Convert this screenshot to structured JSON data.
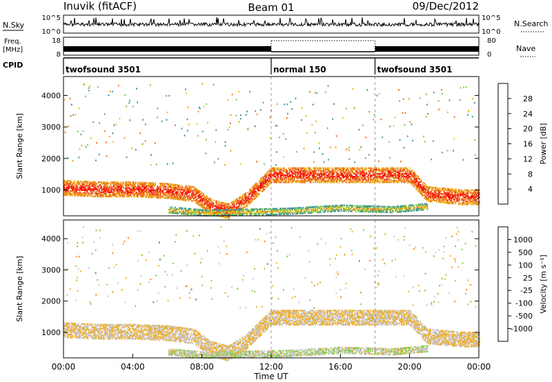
{
  "header": {
    "station": "Inuvik (fitACF)",
    "beam": "Beam 01",
    "date": "09/Dec/2012"
  },
  "status": {
    "nsky_label": "N.Sky",
    "nsky_ticks": [
      "10^5",
      "10^0"
    ],
    "nsearch_label": "N.Search",
    "nsearch_ticks": [
      "10^5",
      "10^0"
    ],
    "freq_label_1": "Freq.",
    "freq_label_2": "[MHz]",
    "freq_ticks": [
      "18",
      "8"
    ],
    "nave_label": "Nave",
    "nave_ticks": [
      "80",
      "0"
    ],
    "cpid_label": "CPID",
    "cpid_segments": [
      {
        "label": "twofsound 3501",
        "start_hour": 0,
        "end_hour": 12
      },
      {
        "label": "normal 150",
        "start_hour": 12,
        "end_hour": 18
      },
      {
        "label": "twofsound 3501",
        "start_hour": 18,
        "end_hour": 24
      }
    ]
  },
  "chart_data": [
    {
      "type": "heatmap",
      "title": "",
      "xlabel": "Time UT",
      "ylabel": "Slant Range [km]",
      "xlim": [
        0,
        24
      ],
      "ylim": [
        180,
        4600
      ],
      "x_ticks": [
        "00:00",
        "04:00",
        "08:00",
        "12:00",
        "16:00",
        "20:00",
        "00:00"
      ],
      "y_ticks": [
        1000,
        2000,
        3000,
        4000
      ],
      "colorbar": {
        "label": "Power [dB]",
        "ticks": [
          "28",
          "24",
          "20",
          "16",
          "12",
          "8",
          "4"
        ],
        "range": [
          0,
          30
        ],
        "colors": [
          "#1a1aff",
          "#2b5fb4",
          "#3d8fb0",
          "#4fa07a",
          "#7cc84a",
          "#e8c020",
          "#f0a020",
          "#f07020",
          "#f04020",
          "#ff0000"
        ]
      },
      "echo_regions": [
        {
          "label": "main band",
          "hours": [
            [
              0,
              1100
            ],
            [
              2,
              1050
            ],
            [
              4,
              1050
            ],
            [
              6,
              1000
            ],
            [
              7.5,
              900
            ],
            [
              8.5,
              500
            ],
            [
              9.5,
              350
            ],
            [
              10.5,
              700
            ],
            [
              12,
              1500
            ],
            [
              14,
              1500
            ],
            [
              16,
              1500
            ],
            [
              18,
              1500
            ],
            [
              20,
              1500
            ],
            [
              21,
              900
            ],
            [
              23,
              800
            ],
            [
              24,
              800
            ]
          ],
          "half_width_km": 230,
          "power_db": 27
        },
        {
          "label": "near range band",
          "hours": [
            [
              6,
              400
            ],
            [
              8,
              300
            ],
            [
              9,
              300
            ],
            [
              13,
              350
            ],
            [
              16,
              450
            ],
            [
              19,
              400
            ],
            [
              21,
              500
            ]
          ],
          "half_width_km": 90,
          "power_db": 18
        }
      ]
    },
    {
      "type": "heatmap",
      "title": "",
      "xlabel": "Time UT",
      "ylabel": "Slant Range [km]",
      "xlim": [
        0,
        24
      ],
      "ylim": [
        180,
        4600
      ],
      "x_ticks": [
        "00:00",
        "04:00",
        "08:00",
        "12:00",
        "16:00",
        "20:00",
        "00:00"
      ],
      "y_ticks": [
        1000,
        2000,
        3000,
        4000
      ],
      "colorbar": {
        "label": "Velocity [m s⁻¹]",
        "ticks": [
          "1000",
          "500",
          "100",
          "25",
          "-25",
          "-100",
          "-500",
          "-1000"
        ],
        "range": [
          -1200,
          1200
        ],
        "colors": [
          "#ff0000",
          "#f05020",
          "#f08a20",
          "#f0b030",
          "#c8c8c8",
          "#88cc44",
          "#3a9a5a",
          "#2f8fae",
          "#2450b8"
        ]
      },
      "echo_regions": [
        {
          "label": "main band",
          "hours": [
            [
              0,
              1100
            ],
            [
              2,
              1050
            ],
            [
              4,
              1050
            ],
            [
              6,
              1000
            ],
            [
              7.5,
              900
            ],
            [
              8.5,
              500
            ],
            [
              9.5,
              350
            ],
            [
              10.5,
              700
            ],
            [
              12,
              1500
            ],
            [
              14,
              1500
            ],
            [
              16,
              1500
            ],
            [
              18,
              1500
            ],
            [
              20,
              1500
            ],
            [
              21,
              900
            ],
            [
              23,
              800
            ],
            [
              24,
              800
            ]
          ],
          "half_width_km": 230,
          "velocity_ms": -150
        },
        {
          "label": "near range band",
          "hours": [
            [
              6,
              400
            ],
            [
              8,
              300
            ],
            [
              9,
              300
            ],
            [
              13,
              350
            ],
            [
              16,
              450
            ],
            [
              19,
              400
            ],
            [
              21,
              500
            ]
          ],
          "half_width_km": 90,
          "velocity_ms": 50
        }
      ]
    }
  ]
}
